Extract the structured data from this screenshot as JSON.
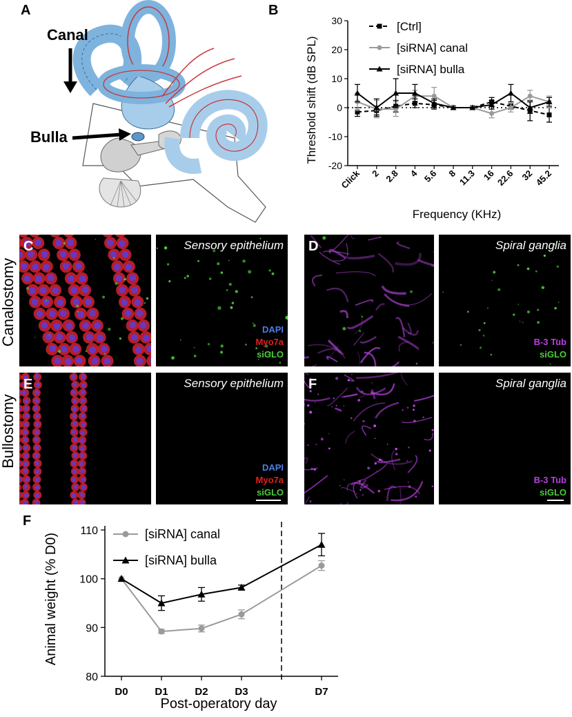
{
  "panels": {
    "a": {
      "letter": "A",
      "canal_label": "Canal",
      "bulla_label": "Bulla"
    },
    "b": {
      "letter": "B"
    },
    "c": {
      "letter": "C",
      "title": "Sensory epithelium",
      "stains": [
        "DAPI",
        "Myo7a",
        "siGLO"
      ]
    },
    "d": {
      "letter": "D",
      "title": "Spiral ganglia",
      "stains": [
        "B-3 Tub",
        "siGLO"
      ]
    },
    "e": {
      "letter": "E",
      "title": "Sensory epithelium",
      "stains": [
        "DAPI",
        "Myo7a",
        "siGLO"
      ]
    },
    "f_top": {
      "letter": "F",
      "title": "Spiral ganglia",
      "stains": [
        "B-3 Tub",
        "siGLO"
      ]
    },
    "f_bottom": {
      "letter": "F"
    }
  },
  "row_labels": {
    "canalostomy": "Canalostomy",
    "bullostomy": "Bullostomy"
  },
  "colors": {
    "dapi": "#4f7de8",
    "myo7a": "#e0201e",
    "siglo": "#4dcc3a",
    "tub": "#b83fe0",
    "ctrl": "#000000",
    "canal": "#9a9a9a",
    "bulla": "#000000",
    "cochlea": "#a8cdea"
  },
  "chart_data": [
    {
      "type": "line",
      "xlabel": "Frequency (KHz)",
      "ylabel": "Threshold shift (dB SPL)",
      "categories": [
        "Click",
        "2",
        "2.8",
        "4",
        "5.6",
        "8",
        "11.3",
        "16",
        "22.6",
        "32",
        "45.2"
      ],
      "ylim": [
        -20,
        30
      ],
      "yticks": [
        "30",
        "20",
        "10",
        "0",
        "-10",
        "-20"
      ],
      "reference_line": 0,
      "legend_position": "top-right",
      "series": [
        {
          "name": "[Ctrl]",
          "values": [
            -1.5,
            -1,
            0.5,
            1.5,
            1,
            0,
            0,
            2,
            0.5,
            -1,
            -2.5
          ],
          "errors": [
            1.5,
            1.5,
            2,
            1.5,
            1.5,
            0,
            0,
            1.5,
            1,
            3.5,
            2.5
          ],
          "style": "dashed",
          "marker": "square"
        },
        {
          "name": "[siRNA] canal",
          "values": [
            2,
            -0.5,
            -0.5,
            4,
            4,
            0,
            0,
            -2,
            0,
            4,
            2
          ],
          "errors": [
            3,
            3,
            2.5,
            2,
            3,
            0,
            0,
            1.5,
            1.5,
            2,
            2
          ],
          "style": "solid",
          "marker": "circle"
        },
        {
          "name": "[siRNA] bulla",
          "values": [
            5,
            0,
            5,
            5,
            1.5,
            0,
            0,
            1,
            5,
            0,
            2
          ],
          "errors": [
            3,
            3,
            5,
            3,
            1.5,
            0,
            0,
            1.5,
            3,
            2,
            1.5
          ],
          "style": "solid",
          "marker": "triangle"
        }
      ]
    },
    {
      "type": "line",
      "xlabel": "Post-operatory day",
      "ylabel": "Animal weight (% D0)",
      "categories": [
        "D0",
        "D1",
        "D2",
        "D3",
        "D7"
      ],
      "x_positions": [
        0,
        1,
        2,
        3,
        5
      ],
      "ylim": [
        80,
        110
      ],
      "yticks": [
        "110",
        "100",
        "90",
        "80"
      ],
      "vertical_marker_x": 4,
      "legend_position": "top-left",
      "series": [
        {
          "name": "[siRNA] canal",
          "values": [
            100,
            89.2,
            89.8,
            92.7,
            102.7
          ],
          "errors": [
            0,
            0.4,
            0.7,
            0.9,
            1.0
          ],
          "marker": "circle"
        },
        {
          "name": "[siRNA] bulla",
          "values": [
            100,
            95,
            96.8,
            98.2,
            107
          ],
          "errors": [
            0,
            1.5,
            1.4,
            0.5,
            2.3
          ],
          "marker": "triangle"
        }
      ]
    }
  ]
}
